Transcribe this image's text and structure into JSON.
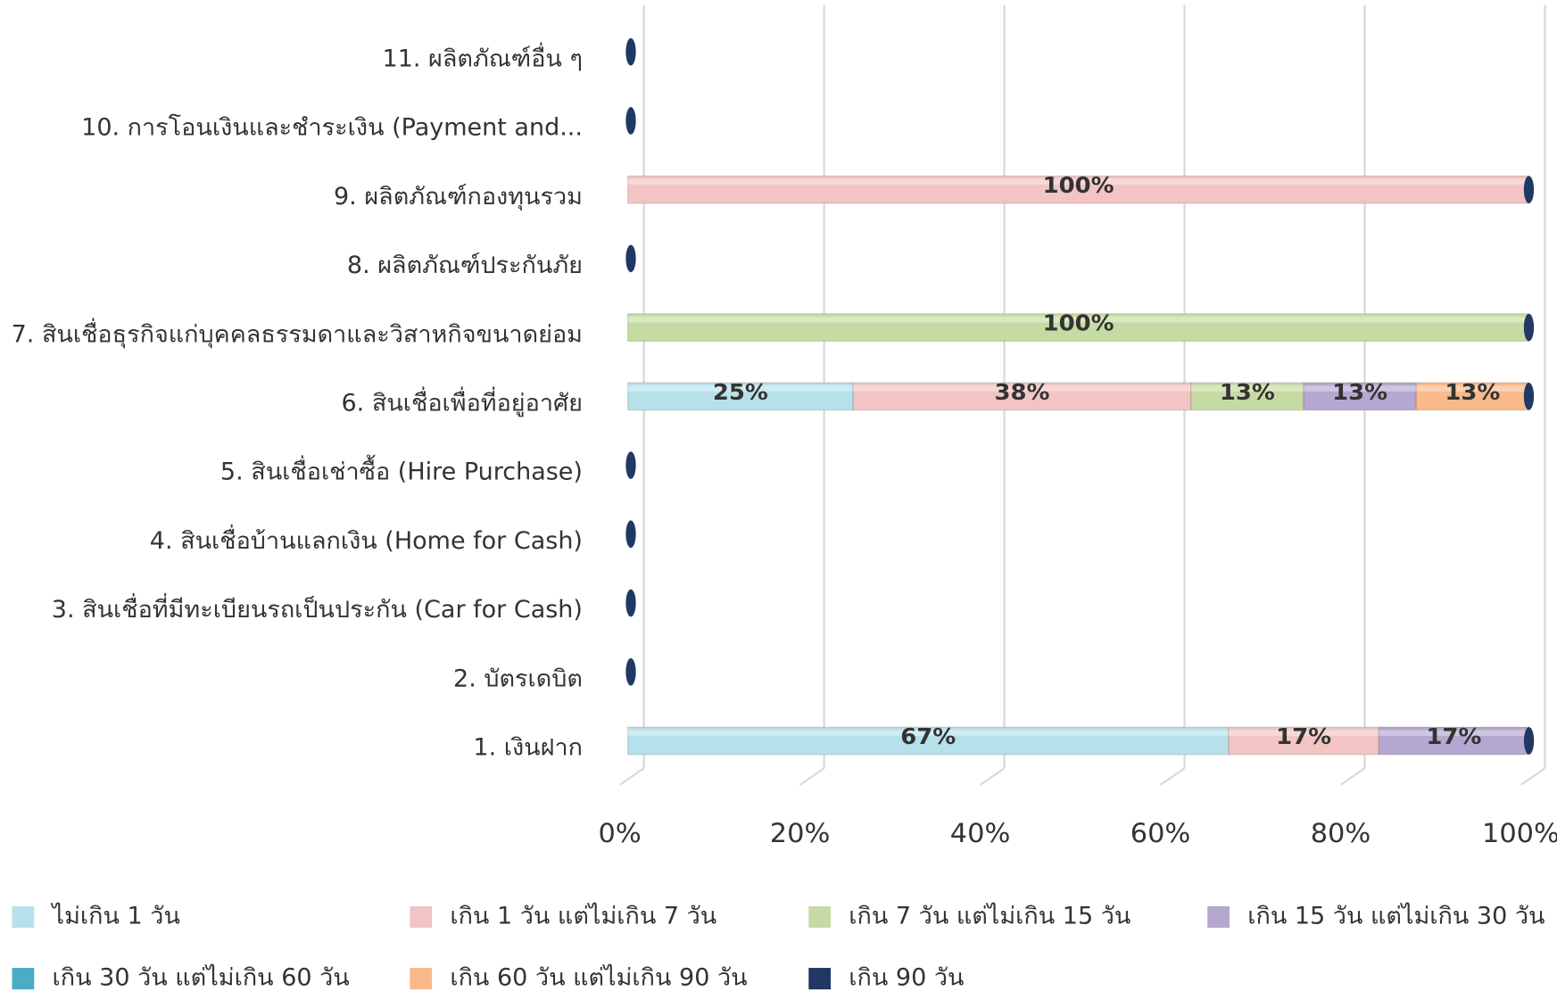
{
  "chart_data": {
    "type": "stacked_barh",
    "categories": [
      "1. เงินฝาก",
      "2. บัตรเดบิต",
      "3. สินเชื่อที่มีทะเบียนรถเป็นประกัน (Car for Cash)",
      "4. สินเชื่อบ้านแลกเงิน (Home for Cash)",
      "5. สินเชื่อเช่าซื้อ (Hire Purchase)",
      "6. สินเชื่อเพื่อที่อยู่อาศัย",
      "7. สินเชื่อธุรกิจแก่บุคคลธรรมดาและวิสาหกิจขนาดย่อม",
      "8. ผลิตภัณฑ์ประกันภัย",
      "9. ผลิตภัณฑ์กองทุนรวม",
      "10. การโอนเงินและชำระเงิน (Payment and...",
      "11. ผลิตภัณฑ์อื่น ๆ"
    ],
    "series": [
      {
        "name": "ไม่เกิน 1 วัน",
        "color": "#b7e1ea",
        "values": [
          66.67,
          0,
          0,
          0,
          0,
          25,
          0,
          0,
          0,
          0,
          0
        ],
        "value_labels": [
          "67%",
          null,
          null,
          null,
          null,
          "25%",
          null,
          null,
          null,
          null,
          null
        ]
      },
      {
        "name": "เกิน 1 วัน แต่ไม่เกิน 7 วัน",
        "color": "#f2c4c4",
        "values": [
          16.67,
          0,
          0,
          0,
          0,
          37.5,
          0,
          0,
          100,
          0,
          0
        ],
        "value_labels": [
          "17%",
          null,
          null,
          null,
          null,
          "38%",
          null,
          null,
          "100%",
          null,
          null
        ]
      },
      {
        "name": "เกิน 7 วัน แต่ไม่เกิน 15 วัน",
        "color": "#c6dba3",
        "values": [
          0,
          0,
          0,
          0,
          0,
          12.5,
          100,
          0,
          0,
          0,
          0
        ],
        "value_labels": [
          null,
          null,
          null,
          null,
          null,
          "13%",
          "100%",
          null,
          null,
          null,
          null
        ]
      },
      {
        "name": "เกิน 15 วัน แต่ไม่เกิน 30 วัน",
        "color": "#b4a7d0",
        "values": [
          16.67,
          0,
          0,
          0,
          0,
          12.5,
          0,
          0,
          0,
          0,
          0
        ],
        "value_labels": [
          "17%",
          null,
          null,
          null,
          null,
          "13%",
          null,
          null,
          null,
          null,
          null
        ]
      },
      {
        "name": "เกิน 30 วัน แต่ไม่เกิน 60 วัน",
        "color": "#4bacc6",
        "values": [
          0,
          0,
          0,
          0,
          0,
          0,
          0,
          0,
          0,
          0,
          0
        ],
        "value_labels": [
          null,
          null,
          null,
          null,
          null,
          null,
          null,
          null,
          null,
          null,
          null
        ]
      },
      {
        "name": "เกิน 60 วัน แต่ไม่เกิน 90 วัน",
        "color": "#f9b98a",
        "values": [
          0,
          0,
          0,
          0,
          0,
          12.5,
          0,
          0,
          0,
          0,
          0
        ],
        "value_labels": [
          null,
          null,
          null,
          null,
          null,
          "13%",
          null,
          null,
          null,
          null,
          null
        ]
      },
      {
        "name": "เกิน 90 วัน",
        "color": "#1f3864",
        "values": [
          0,
          0,
          0,
          0,
          0,
          0,
          0,
          0,
          0,
          0,
          0
        ],
        "value_labels": [
          null,
          null,
          null,
          null,
          null,
          null,
          null,
          null,
          null,
          null,
          null
        ]
      }
    ],
    "xlim": [
      0,
      100
    ],
    "xticks": [
      {
        "value": 0,
        "label": "0%"
      },
      {
        "value": 20,
        "label": "20%"
      },
      {
        "value": 40,
        "label": "40%"
      },
      {
        "value": 60,
        "label": "60%"
      },
      {
        "value": 80,
        "label": "80%"
      },
      {
        "value": 100,
        "label": "100%"
      }
    ],
    "grid": true,
    "legend": "bottom"
  }
}
